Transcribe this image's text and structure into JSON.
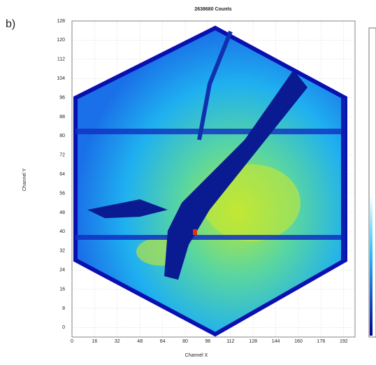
{
  "chart_data": {
    "type": "heatmap",
    "panel_label": "b)",
    "title": "2638680   Counts",
    "xlabel": "Channel X",
    "ylabel": "Channel Y",
    "xlim": [
      0,
      200
    ],
    "ylim": [
      -4,
      128
    ],
    "xticks": [
      0,
      16,
      32,
      48,
      64,
      80,
      96,
      112,
      128,
      144,
      160,
      176,
      192
    ],
    "yticks": [
      0,
      8,
      16,
      24,
      32,
      40,
      48,
      56,
      64,
      72,
      80,
      88,
      96,
      104,
      112,
      120,
      128
    ],
    "grid": true
  }
}
